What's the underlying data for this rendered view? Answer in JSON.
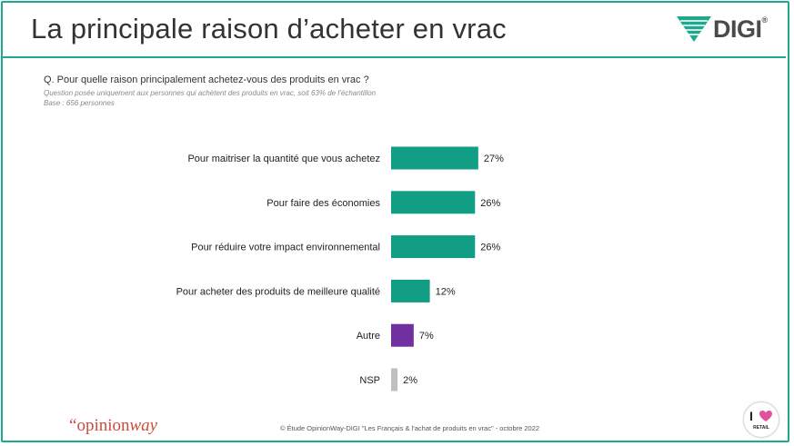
{
  "header": {
    "title": "La principale raison d’acheter en vrac",
    "logo_text": "DIGI",
    "logo_suffix": "®"
  },
  "question": {
    "text": "Q. Pour quelle raison principalement achetez-vous des produits en vrac ?",
    "note": "Question posée uniquement aux personnes qui achètent des produits en vrac, soit 63% de l’échantillon",
    "base": "Base : 656 personnes"
  },
  "chart_data": {
    "type": "bar",
    "orientation": "horizontal",
    "categories": [
      "Pour maitriser la quantité que vous achetez",
      "Pour faire des économies",
      "Pour réduire votre impact environnemental",
      "Pour acheter des produits de meilleure qualité",
      "Autre",
      "NSP"
    ],
    "values": [
      27,
      26,
      26,
      12,
      7,
      2
    ],
    "value_labels": [
      "27%",
      "26%",
      "26%",
      "12%",
      "7%",
      "2%"
    ],
    "colors": [
      "#129e85",
      "#129e85",
      "#129e85",
      "#129e85",
      "#7030a0",
      "#bfbfbf"
    ],
    "xlim": [
      0,
      100
    ],
    "grid": false,
    "legend": "none"
  },
  "footer": {
    "brand_quote": "“",
    "brand_opinion": "opinion",
    "brand_way": "way",
    "source": "© Étude OpinionWay-DIGI \"Les Français & l'achat de produits en vrac\" - octobre 2022",
    "badge_letter": "I",
    "badge_word": "RETAIL"
  },
  "colors": {
    "accent": "#1fa88f",
    "bar_main": "#129e85",
    "bar_other": "#7030a0",
    "bar_nsp": "#bfbfbf",
    "brand_red": "#d04a3c",
    "heart": "#e0529b"
  }
}
